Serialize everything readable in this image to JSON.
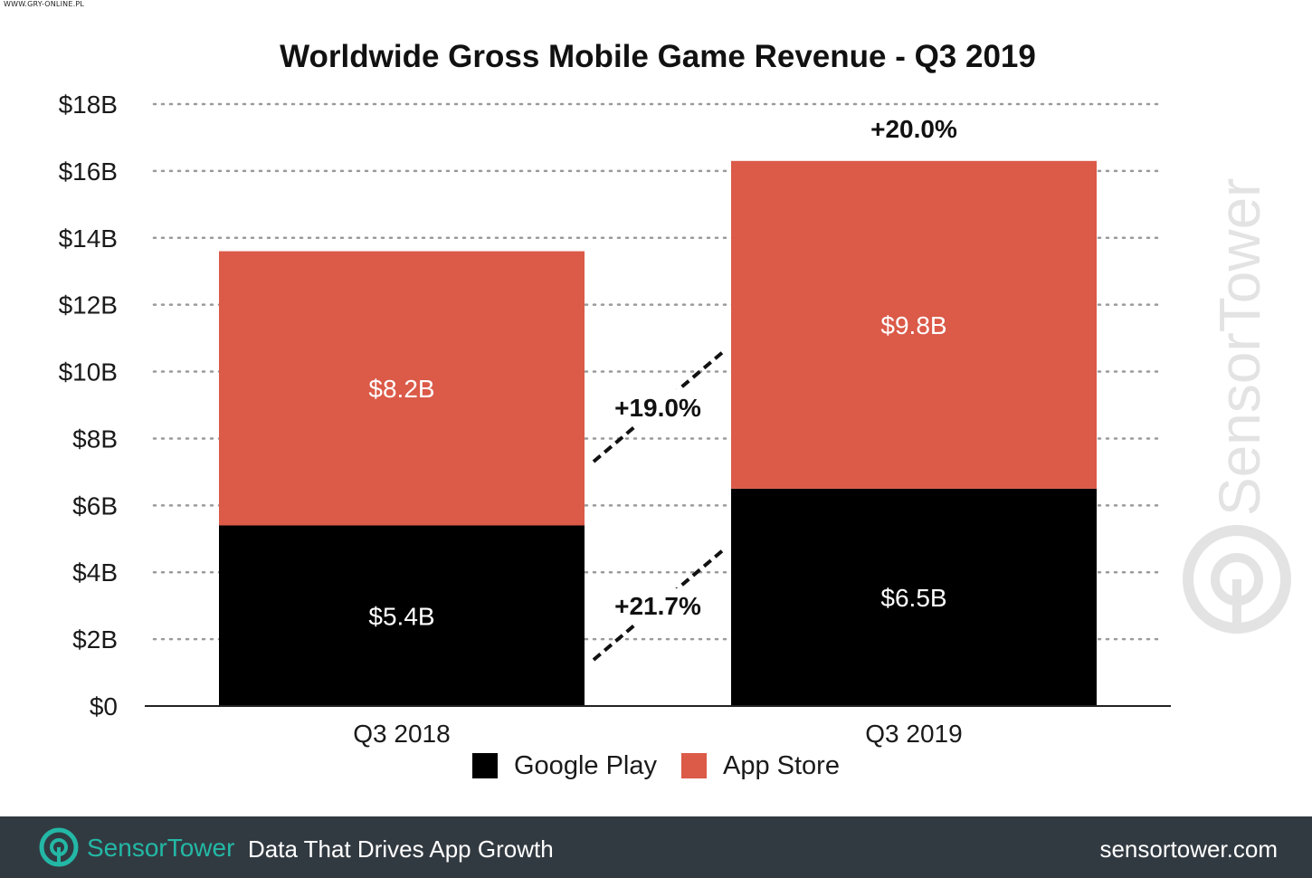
{
  "corner_credit": "WWW.GRY-ONLINE.PL",
  "chart_data": {
    "type": "bar",
    "stacked": true,
    "title": "Worldwide Gross Mobile Game Revenue - Q3 2019",
    "categories": [
      "Q3 2018",
      "Q3 2019"
    ],
    "series": [
      {
        "name": "Google Play",
        "values": [
          5.4,
          6.5
        ],
        "labels": [
          "$5.4B",
          "$6.5B"
        ],
        "color": "#000000"
      },
      {
        "name": "App Store",
        "values": [
          8.2,
          9.8
        ],
        "labels": [
          "$8.2B",
          "$9.8B"
        ],
        "color": "#db5a48"
      }
    ],
    "ylim": [
      0,
      18
    ],
    "yticks": [
      0,
      2,
      4,
      6,
      8,
      10,
      12,
      14,
      16,
      18
    ],
    "ytick_labels": [
      "$0",
      "$2B",
      "$4B",
      "$6B",
      "$8B",
      "$10B",
      "$12B",
      "$14B",
      "$16B",
      "$18B"
    ],
    "grid": true,
    "legend_position": "bottom",
    "annotations": {
      "total_growth": "+20.0%",
      "app_store_growth": "+19.0%",
      "google_play_growth": "+21.7%"
    },
    "watermark": "SensorTower"
  },
  "footer": {
    "brand_part1": "Sensor",
    "brand_part2": "Tower",
    "tagline": "Data That Drives App Growth",
    "website": "sensortower.com"
  },
  "icons": {
    "footer_logo": "sensortower-logo-icon",
    "watermark_logo": "sensortower-logo-icon"
  }
}
